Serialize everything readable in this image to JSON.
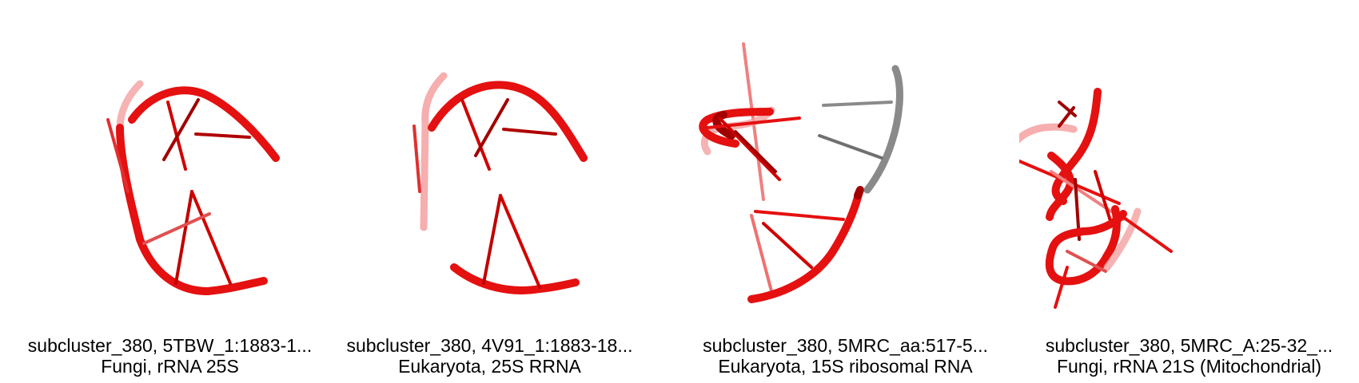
{
  "panels": [
    {
      "title": "subcluster_380, 5TBW_1:1883-1...",
      "subtitle": "Fungi, rRNA 25S",
      "structure_icon": "rna-fragment-icon"
    },
    {
      "title": "subcluster_380, 4V91_1:1883-18...",
      "subtitle": "Eukaryota, 25S RRNA",
      "structure_icon": "rna-fragment-icon"
    },
    {
      "title": "subcluster_380, 5MRC_aa:517-5...",
      "subtitle": "Eukaryota, 15S ribosomal RNA",
      "structure_icon": "rna-fragment-icon"
    },
    {
      "title": "subcluster_380, 5MRC_A:25-32_...",
      "subtitle": "Fungi, rRNA 21S (Mitochondrial)",
      "structure_icon": "rna-fragment-icon"
    }
  ],
  "colors": {
    "backbone": "#e00000",
    "backbone_dark": "#a00000",
    "backbone_faded": "#f08080",
    "secondary_chain": "#888888"
  }
}
